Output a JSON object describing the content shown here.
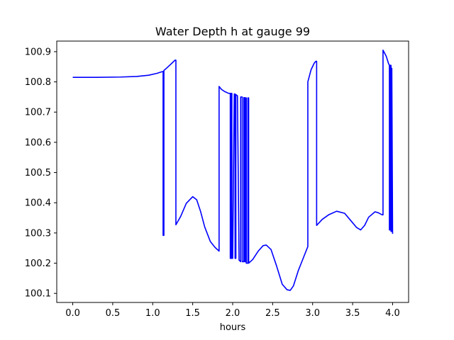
{
  "chart_data": {
    "type": "line",
    "title": "Water Depth h at gauge 99",
    "xlabel": "hours",
    "ylabel": "",
    "xlim": [
      -0.2,
      4.2
    ],
    "ylim": [
      100.07,
      100.935
    ],
    "xticks": [
      0.0,
      0.5,
      1.0,
      1.5,
      2.0,
      2.5,
      3.0,
      3.5,
      4.0
    ],
    "xtick_labels": [
      "0.0",
      "0.5",
      "1.0",
      "1.5",
      "2.0",
      "2.5",
      "3.0",
      "3.5",
      "4.0"
    ],
    "yticks": [
      100.1,
      100.2,
      100.3,
      100.4,
      100.5,
      100.6,
      100.7,
      100.8,
      100.9
    ],
    "ytick_labels": [
      "100.1",
      "100.2",
      "100.3",
      "100.4",
      "100.5",
      "100.6",
      "100.7",
      "100.8",
      "100.9"
    ],
    "grid": false,
    "line_color": "#0000ff",
    "series": [
      {
        "x": [
          0.0,
          0.3,
          0.6,
          0.8,
          0.95,
          1.05,
          1.12,
          1.13,
          1.13,
          1.14,
          1.14,
          1.15,
          1.2,
          1.28,
          1.29,
          1.29,
          1.35,
          1.42,
          1.5,
          1.55,
          1.6,
          1.65,
          1.72,
          1.78,
          1.83,
          1.83,
          1.86,
          1.9,
          1.95,
          1.97,
          1.97,
          1.98,
          1.98,
          1.99,
          1.99,
          2.0,
          2.02,
          2.03,
          2.03,
          2.04,
          2.04,
          2.06,
          2.08,
          2.1,
          2.1,
          2.12,
          2.12,
          2.14,
          2.14,
          2.15,
          2.15,
          2.16,
          2.16,
          2.17,
          2.17,
          2.19,
          2.19,
          2.2,
          2.2,
          2.25,
          2.32,
          2.38,
          2.42,
          2.48,
          2.55,
          2.62,
          2.68,
          2.72,
          2.76,
          2.82,
          2.88,
          2.94,
          2.94,
          2.98,
          3.02,
          3.04,
          3.05,
          3.05,
          3.12,
          3.2,
          3.3,
          3.4,
          3.48,
          3.55,
          3.6,
          3.65,
          3.7,
          3.78,
          3.82,
          3.87,
          3.88,
          3.88,
          3.92,
          3.95,
          3.96,
          3.96,
          3.97,
          3.97,
          3.98,
          3.98,
          3.99,
          3.99,
          4.0
        ],
        "y": [
          100.815,
          100.815,
          100.816,
          100.818,
          100.822,
          100.828,
          100.834,
          100.834,
          100.292,
          100.292,
          100.838,
          100.84,
          100.852,
          100.872,
          100.872,
          100.327,
          100.355,
          100.398,
          100.42,
          100.41,
          100.37,
          100.32,
          100.272,
          100.252,
          100.24,
          100.785,
          100.775,
          100.768,
          100.762,
          100.762,
          100.216,
          100.216,
          100.762,
          100.762,
          100.216,
          100.216,
          100.76,
          100.76,
          100.216,
          100.216,
          100.758,
          100.754,
          100.21,
          100.205,
          100.75,
          100.75,
          100.205,
          100.205,
          100.748,
          100.748,
          100.205,
          100.205,
          100.747,
          100.747,
          100.2,
          100.2,
          100.747,
          100.747,
          100.2,
          100.212,
          100.24,
          100.258,
          100.26,
          100.245,
          100.19,
          100.13,
          100.112,
          100.11,
          100.125,
          100.175,
          100.215,
          100.255,
          100.8,
          100.84,
          100.862,
          100.868,
          100.868,
          100.325,
          100.345,
          100.36,
          100.372,
          100.365,
          100.34,
          100.318,
          100.31,
          100.325,
          100.352,
          100.37,
          100.367,
          100.36,
          100.36,
          100.905,
          100.885,
          100.86,
          100.855,
          100.31,
          100.31,
          100.855,
          100.855,
          100.305,
          100.305,
          100.845,
          100.297
        ]
      }
    ]
  }
}
